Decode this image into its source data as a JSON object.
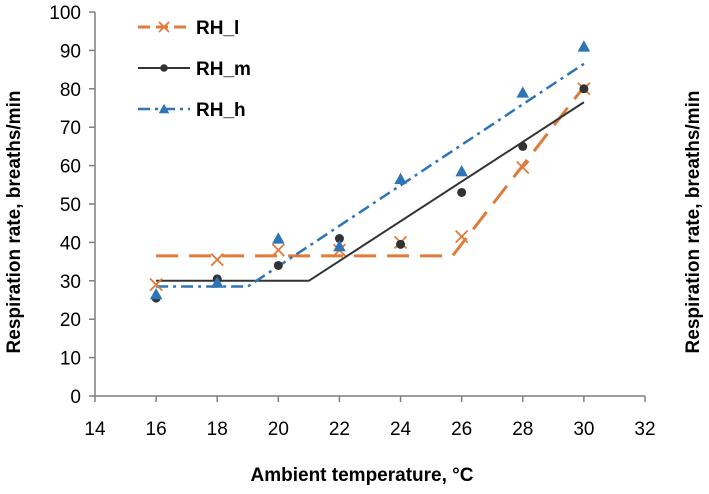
{
  "chart_data": {
    "type": "scatter",
    "title": "",
    "xlabel": "Ambient temperature, °C",
    "ylabel": "Respiration rate, breaths/min",
    "ylabel_right": "Respiration rate, breaths/min",
    "xlim": [
      14,
      32
    ],
    "ylim": [
      0,
      100
    ],
    "xticks": [
      14,
      16,
      18,
      20,
      22,
      24,
      26,
      28,
      30,
      32
    ],
    "yticks": [
      0,
      10,
      20,
      30,
      40,
      50,
      60,
      70,
      80,
      90,
      100
    ],
    "grid": false,
    "legend_position": "top-left",
    "series": [
      {
        "name": "RH_l",
        "marker": "x",
        "color": "#e07b39",
        "line_style": "long-dash",
        "x": [
          16,
          18,
          20,
          22,
          24,
          26,
          28,
          30
        ],
        "y": [
          29,
          35.5,
          38,
          38,
          40,
          41.5,
          59.5,
          80
        ],
        "trend": [
          [
            16,
            36.5
          ],
          [
            25.7,
            36.5
          ],
          [
            30,
            80.5
          ]
        ]
      },
      {
        "name": "RH_m",
        "marker": "circle",
        "color": "#333333",
        "line_style": "solid",
        "x": [
          16,
          18,
          20,
          22,
          24,
          26,
          28,
          30
        ],
        "y": [
          25.5,
          30.5,
          34,
          41,
          39.5,
          53,
          65,
          80
        ],
        "trend": [
          [
            16,
            30
          ],
          [
            21,
            30
          ],
          [
            30,
            76.5
          ]
        ]
      },
      {
        "name": "RH_h",
        "marker": "triangle",
        "color": "#2e75b6",
        "line_style": "dash-dot",
        "x": [
          16,
          18,
          20,
          22,
          24,
          26,
          28,
          30
        ],
        "y": [
          26.5,
          29.5,
          41,
          39,
          56.5,
          58.5,
          79,
          91
        ],
        "trend": [
          [
            16,
            28.5
          ],
          [
            19,
            28.5
          ],
          [
            30,
            86.5
          ]
        ]
      }
    ]
  }
}
